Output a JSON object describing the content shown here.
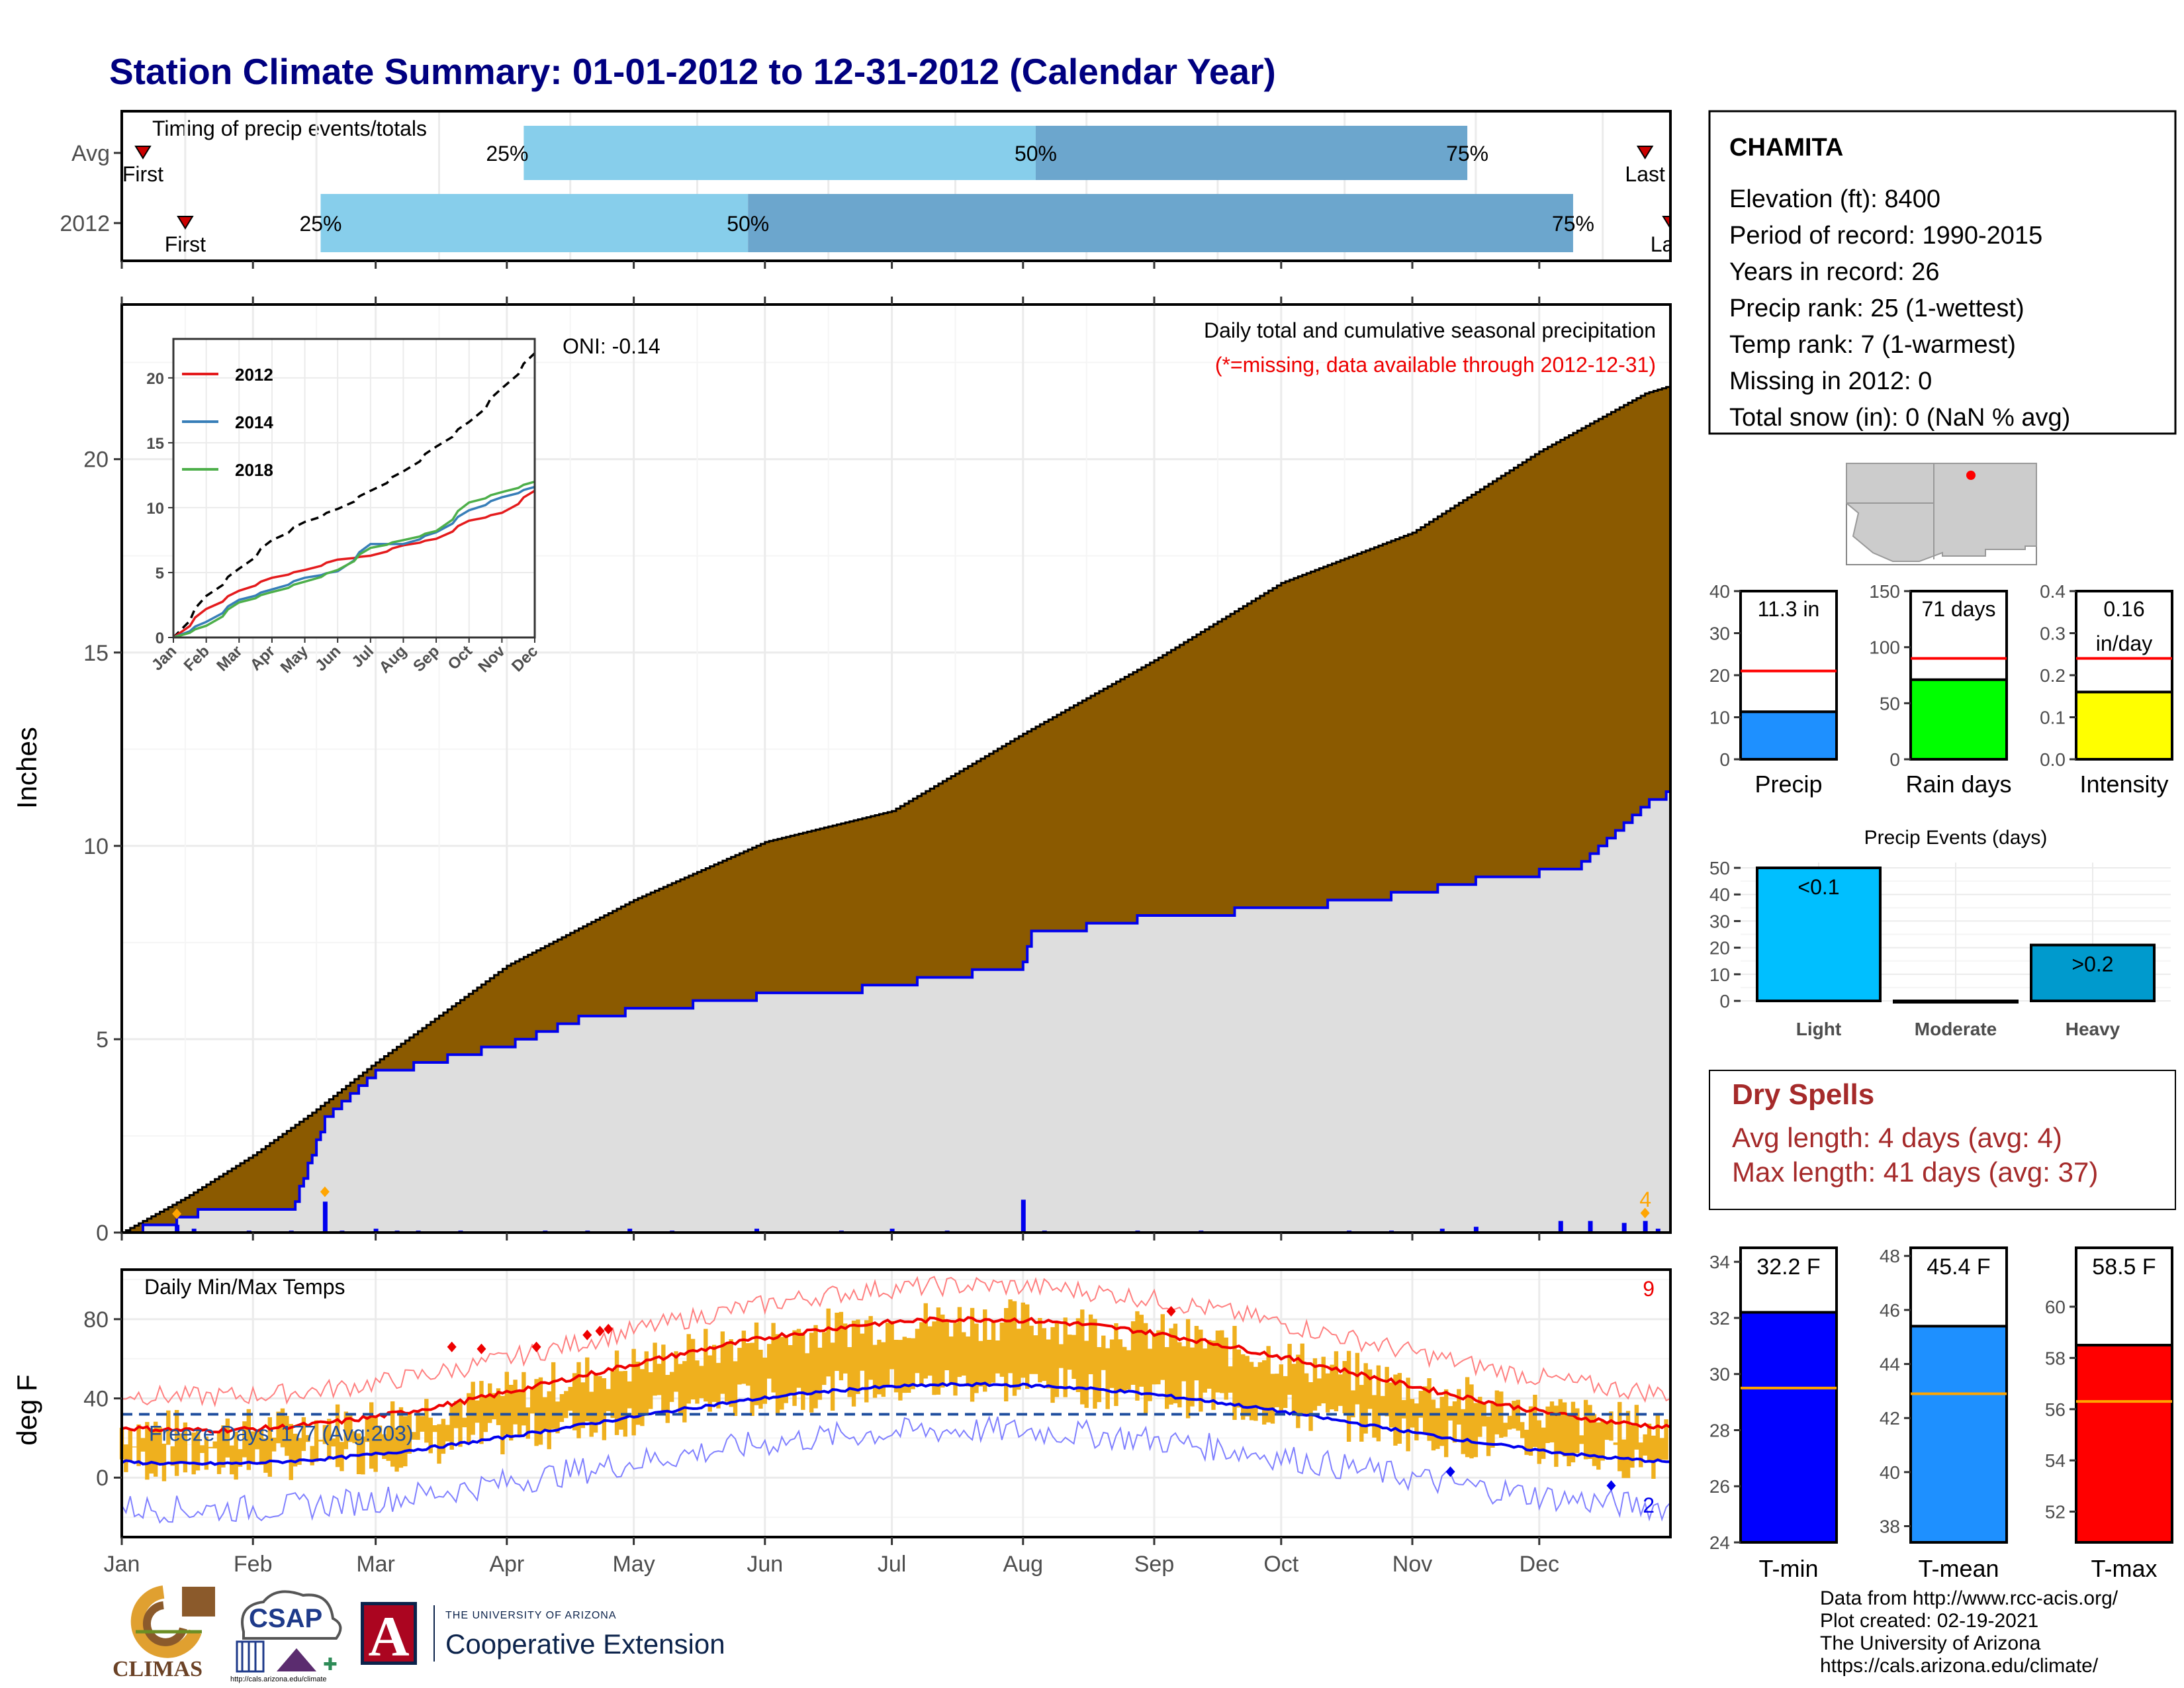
{
  "title": "Station Climate Summary: 01-01-2012 to 12-31-2012 (Calendar Year)",
  "timing": {
    "label": "Timing of precip events/totals",
    "rows": [
      {
        "name": "Avg",
        "first_label": "First",
        "last_label": "Last",
        "p25": "25%",
        "p50": "50%",
        "p75": "75%",
        "first_day": 5,
        "q25_day": 95,
        "q50_day": 216,
        "q75_day": 318,
        "last_day": 360
      },
      {
        "name": "2012",
        "first_label": "First",
        "last_label": "Last",
        "p25": "25%",
        "p50": "50%",
        "p75": "75%",
        "first_day": 15,
        "q25_day": 47,
        "q50_day": 148,
        "q75_day": 343,
        "last_day": 366
      }
    ],
    "colors": {
      "light": "#87CEEB",
      "dark": "#6CA6CD",
      "marker": "#CC0000"
    }
  },
  "precip": {
    "ylabel": "Inches",
    "title": "Daily total and cumulative seasonal precipitation",
    "subtitle": "(*=missing, data available through 2012-12-31)",
    "oni": "ONI: -0.14",
    "corner_value": "4",
    "ylim": [
      0,
      24
    ],
    "yticks": [
      "0",
      "5",
      "10",
      "15",
      "20"
    ],
    "avg_cum_days": [
      0,
      15,
      31,
      45,
      60,
      91,
      121,
      152,
      182,
      213,
      244,
      274,
      305,
      335,
      360,
      366
    ],
    "avg_cum_vals": [
      0,
      0.9,
      2.0,
      3.1,
      4.4,
      6.9,
      8.6,
      10.1,
      10.9,
      12.9,
      14.8,
      16.8,
      18.1,
      20.2,
      21.7,
      21.9
    ],
    "obs_cum_days": [
      0,
      13,
      18,
      40,
      48,
      55,
      60,
      93,
      110,
      150,
      155,
      175,
      213,
      215,
      240,
      285,
      300,
      320,
      335,
      345,
      351,
      361,
      366
    ],
    "obs_cum_vals": [
      0,
      0.3,
      0.5,
      0.6,
      2.9,
      3.6,
      4.1,
      4.9,
      5.6,
      6.1,
      6.0,
      6.3,
      6.9,
      7.7,
      8.1,
      8.5,
      8.7,
      9.1,
      9.3,
      9.5,
      10.2,
      11.1,
      11.4
    ],
    "daily_days": [
      13,
      17,
      30,
      40,
      48,
      52,
      60,
      65,
      70,
      80,
      100,
      110,
      120,
      130,
      150,
      170,
      182,
      195,
      213,
      218,
      240,
      255,
      290,
      300,
      312,
      320,
      340,
      347,
      355,
      360,
      363
    ],
    "daily_vals": [
      0.2,
      0.1,
      0.05,
      0.05,
      0.8,
      0.05,
      0.1,
      0.05,
      0.05,
      0.05,
      0.05,
      0.05,
      0.1,
      0.05,
      0.1,
      0.05,
      0.1,
      0.05,
      0.85,
      0.05,
      0.05,
      0.05,
      0.05,
      0.05,
      0.1,
      0.15,
      0.3,
      0.3,
      0.25,
      0.3,
      0.1
    ],
    "colors": {
      "avg_fill": "#8B5A00",
      "obs_fill": "#DEDEDE",
      "obs_line": "#0000EE",
      "bars": "#0000EE",
      "marker": "#FFA500"
    }
  },
  "inset": {
    "xticks": [
      "Jan",
      "Feb",
      "Mar",
      "Apr",
      "May",
      "Jun",
      "Jul",
      "Aug",
      "Sep",
      "Oct",
      "Nov",
      "Dec"
    ],
    "yticks": [
      "0",
      "5",
      "10",
      "15",
      "20"
    ],
    "ylim": [
      0,
      23
    ],
    "series": [
      {
        "name": "2012",
        "color": "#E41A1C",
        "vals": [
          0,
          2.2,
          3.6,
          4.6,
          5.2,
          6.0,
          6.3,
          7.1,
          7.6,
          9.0,
          9.6,
          11.3
        ]
      },
      {
        "name": "2014",
        "color": "#377EB8",
        "vals": [
          0,
          1.2,
          2.9,
          3.7,
          4.6,
          5.1,
          7.2,
          7.2,
          8.1,
          9.8,
          10.8,
          11.6
        ]
      },
      {
        "name": "2018",
        "color": "#4DAF4A",
        "vals": [
          0,
          0.9,
          2.7,
          3.5,
          4.3,
          5.2,
          6.9,
          7.5,
          8.2,
          10.4,
          11.2,
          12.0
        ]
      }
    ],
    "avg": {
      "color": "#000000",
      "vals": [
        0,
        3.2,
        5.3,
        7.5,
        8.9,
        9.9,
        11.3,
        12.8,
        14.7,
        16.6,
        19.2,
        21.9
      ]
    }
  },
  "temps": {
    "ylabel": "deg F",
    "title": "Daily Min/Max Temps",
    "freeze": "Freeze Days: 177 (Avg:203)",
    "corner_top": "9",
    "corner_bottom": "2",
    "ylim": [
      -30,
      105
    ],
    "yticks": [
      "0",
      "40",
      "80"
    ],
    "freeze_level": 32,
    "months": [
      "Jan",
      "Feb",
      "Mar",
      "Apr",
      "May",
      "Jun",
      "Jul",
      "Aug",
      "Sep",
      "Oct",
      "Nov",
      "Dec"
    ],
    "colors": {
      "bars": "#EFB01E",
      "avg_max": "#EE0000",
      "avg_min": "#0000EE",
      "rec_max": "#FF8080",
      "rec_min": "#8080FF",
      "freeze": "#1F4E9E"
    }
  },
  "station": {
    "name": "CHAMITA",
    "lines": [
      "Elevation (ft): 8400",
      "Period of record: 1990-2015",
      "Years in record: 26",
      "Precip rank: 25 (1-wettest)",
      "Temp rank: 7 (1-warmest)",
      "Missing in 2012: 0",
      "Total snow (in): 0 (NaN % avg)"
    ]
  },
  "mini_bars": [
    {
      "name": "Precip",
      "label": "11.3 in",
      "value": 11.3,
      "avg": 21,
      "ymax": 40,
      "ticks": [
        "0",
        "10",
        "20",
        "30",
        "40"
      ],
      "color": "#1E90FF"
    },
    {
      "name": "Rain days",
      "label": "71 days",
      "value": 71,
      "avg": 90,
      "ymax": 150,
      "ticks": [
        "0",
        "50",
        "100",
        "150"
      ],
      "color": "#00FF00"
    },
    {
      "name": "Intensity",
      "label": "0.16",
      "label2": "in/day",
      "value": 0.16,
      "avg": 0.24,
      "ymax": 0.4,
      "ticks": [
        "0.0",
        "0.1",
        "0.2",
        "0.3",
        "0.4"
      ],
      "color": "#FFFF00"
    }
  ],
  "events": {
    "title": "Precip Events (days)",
    "categories": [
      "Light",
      "Moderate",
      "Heavy"
    ],
    "values": [
      50,
      0,
      21
    ],
    "labels": [
      "<0.1",
      "",
      ">0.2"
    ],
    "colors": [
      "#00BFFF",
      "#00BFFF",
      "#009ACD"
    ],
    "ticks": [
      "0",
      "10",
      "20",
      "30",
      "40",
      "50"
    ],
    "ymax": 52
  },
  "dry_spells": {
    "title": "Dry Spells",
    "avg": "Avg length: 4 days (avg: 4)",
    "max": "Max length: 41 days (avg: 37)"
  },
  "temp_bars": [
    {
      "name": "T-min",
      "label": "32.2 F",
      "value": 32.2,
      "avg": 29.5,
      "ymin": 24,
      "ymax": 34.5,
      "ticks": [
        "24",
        "26",
        "28",
        "30",
        "32",
        "34"
      ],
      "color": "#0000FF"
    },
    {
      "name": "T-mean",
      "label": "45.4 F",
      "value": 45.4,
      "avg": 42.9,
      "ymin": 37.4,
      "ymax": 48.3,
      "ticks": [
        "38",
        "40",
        "42",
        "44",
        "46",
        "48"
      ],
      "color": "#1E90FF"
    },
    {
      "name": "T-max",
      "label": "58.5 F",
      "value": 58.5,
      "avg": 56.3,
      "ymin": 50.8,
      "ymax": 62.3,
      "ticks": [
        "52",
        "54",
        "56",
        "58",
        "60"
      ],
      "color": "#FF0000"
    }
  ],
  "footer": [
    "Data from http://www.rcc-acis.org/",
    "Plot created: 02-19-2021",
    "The University of Arizona",
    "https://cals.arizona.edu/climate/"
  ],
  "logos": {
    "climas": "CLIMAS",
    "csap": "CSAP",
    "csap_url": "http://cals.arizona.edu/climate",
    "ua_top": "THE UNIVERSITY OF ARIZONA",
    "ua_bottom": "Cooperative Extension",
    "ua_mark": "A"
  }
}
